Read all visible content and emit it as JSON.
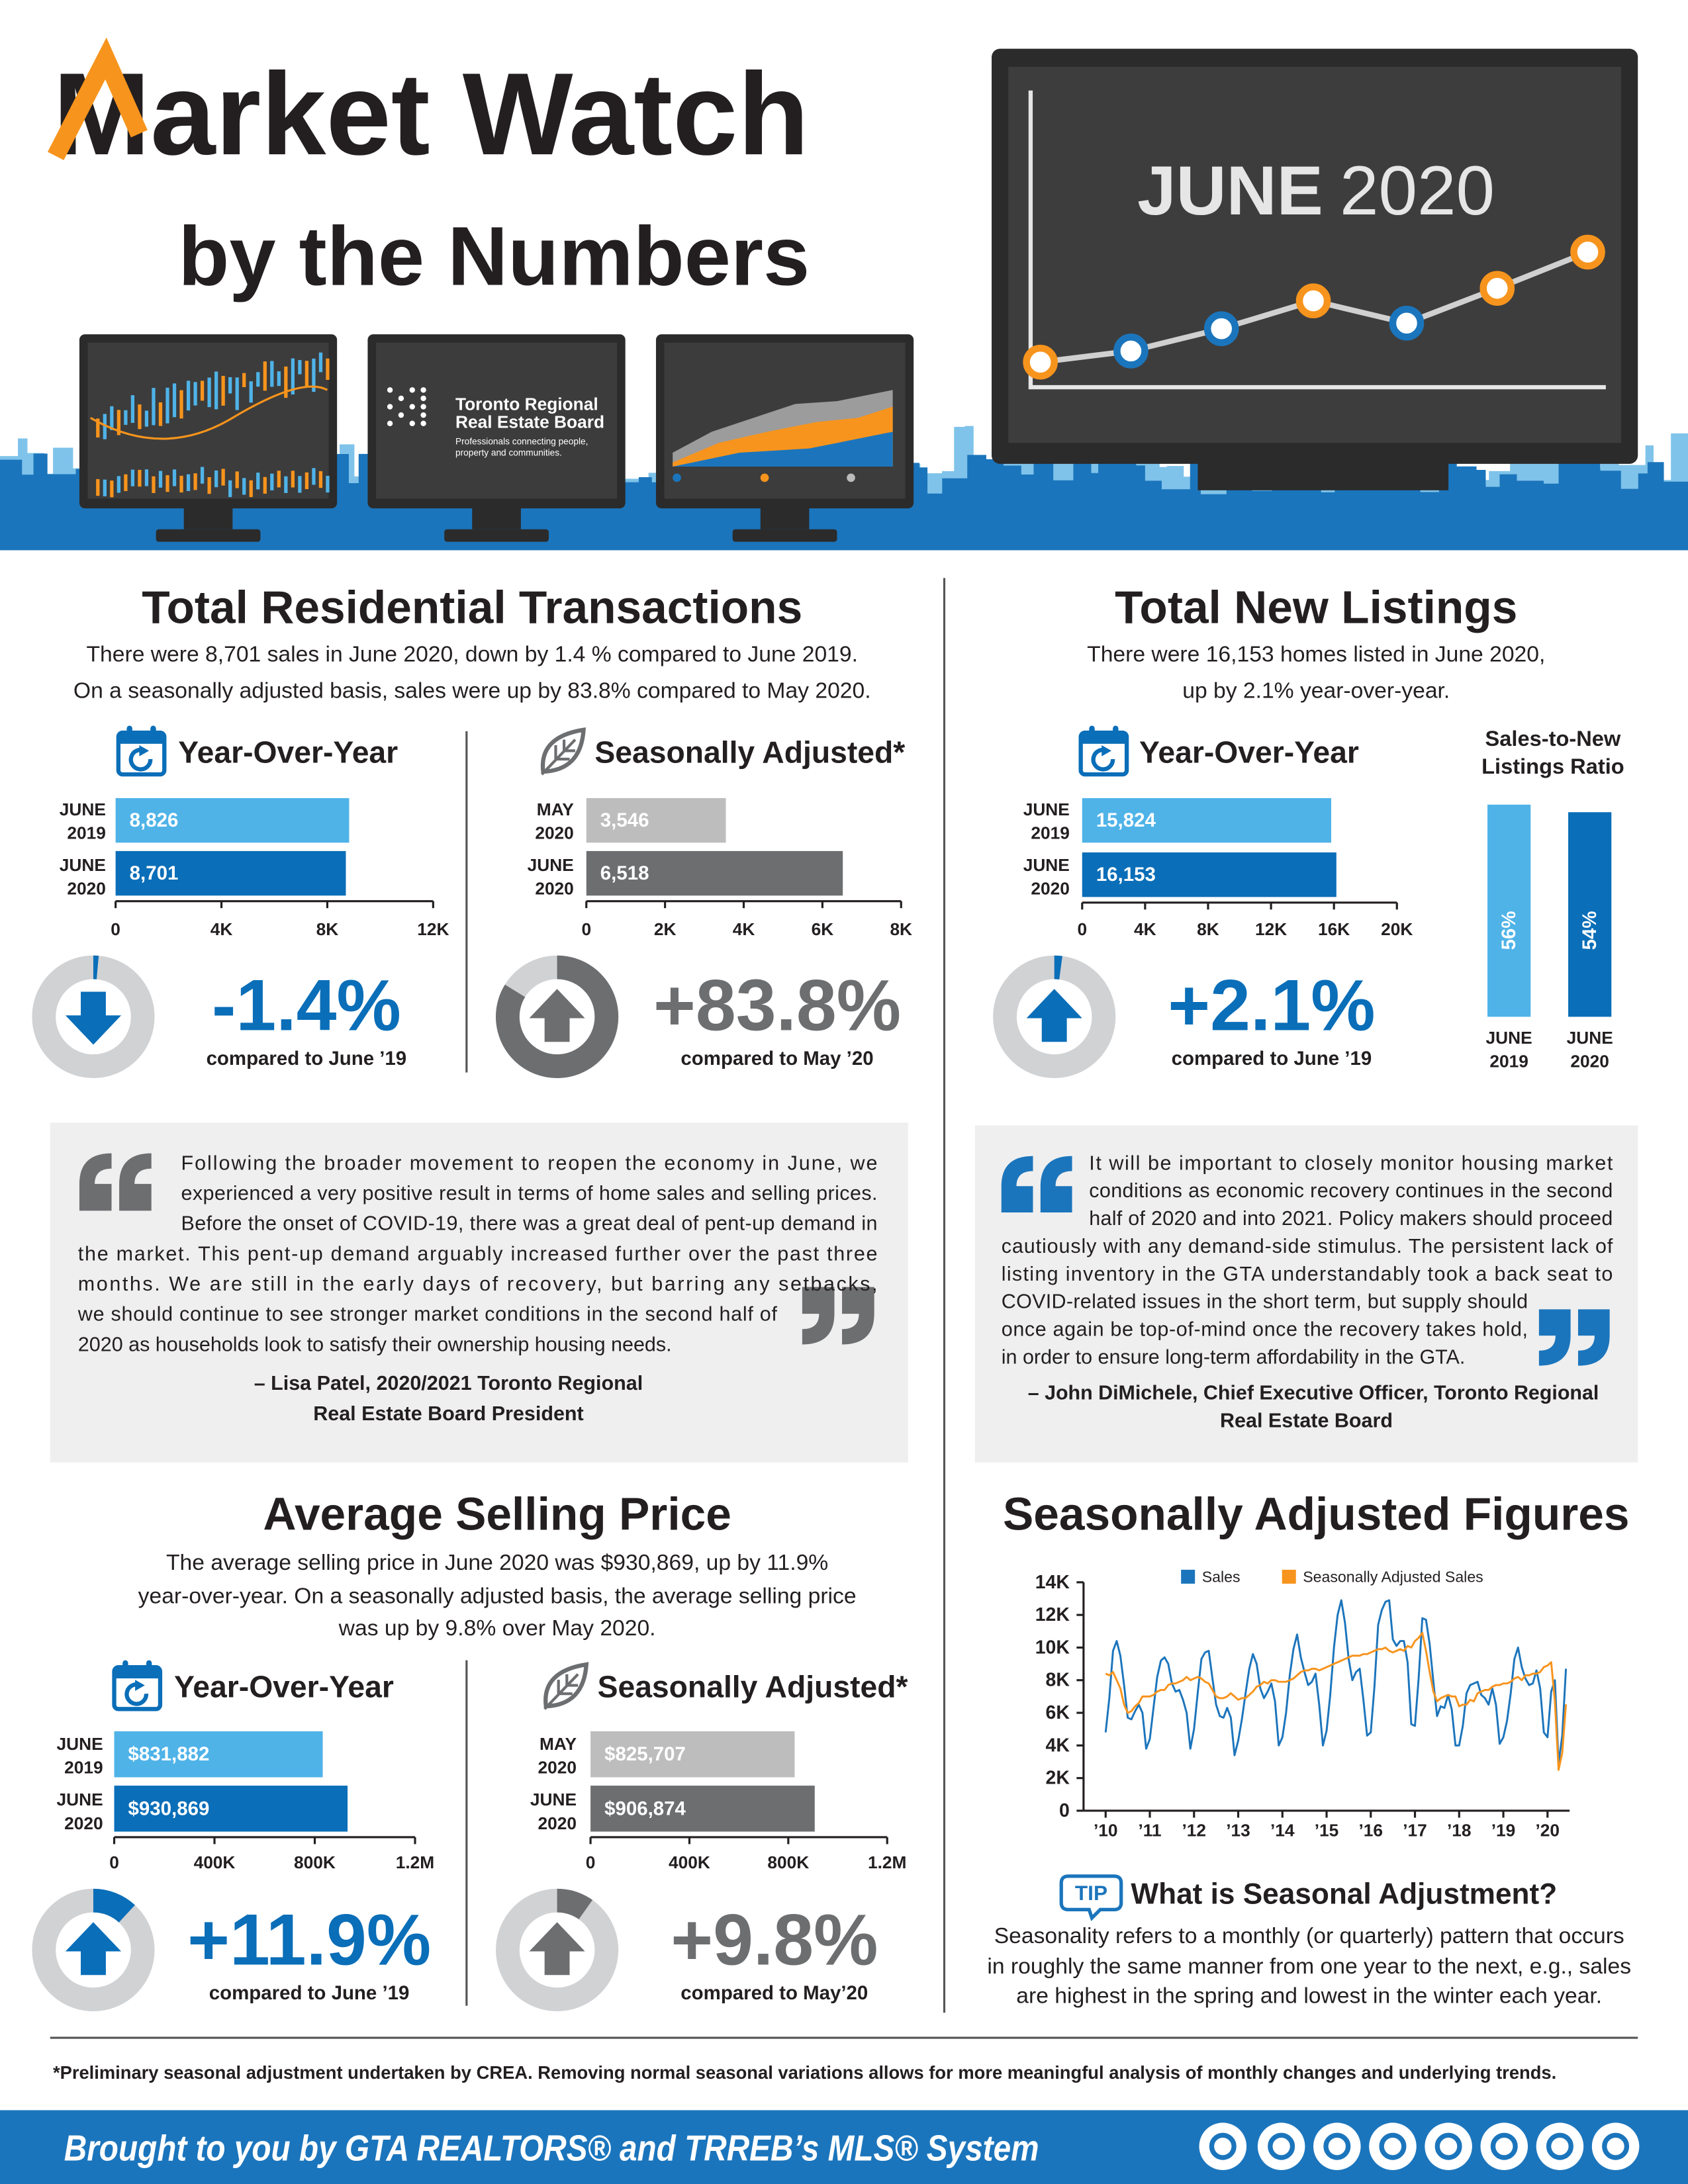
{
  "header": {
    "title": "Market Watch",
    "subtitle": "by the Numbers",
    "month": "JUNE",
    "year": "2020",
    "board": [
      "Toronto Regional",
      "Real Estate Board"
    ],
    "board_tagline": [
      "Professionals connecting people,",
      "property and communities."
    ]
  },
  "transactions": {
    "title": "Total Residential Transactions",
    "lines": [
      "There were 8,701 sales in June 2020, down by 1.4 % compared to June 2019.",
      "On a seasonally adjusted basis, sales were up by 83.8% compared to May 2020."
    ]
  },
  "listings": {
    "title": "Total New Listings",
    "lines": [
      "There were 16,153 homes listed in June 2020,",
      "up by 2.1% year-over-year."
    ]
  },
  "quotes": [
    {
      "lines": [
        "Following the broader movement to reopen the economy in June, we",
        "experienced a very positive result in terms of home sales and selling prices.",
        "Before the onset of COVID-19, there was a great deal of pent-up demand in",
        "the market. This pent-up demand arguably increased further over the past three",
        "months. We are still in the early days of recovery, but barring any setbacks,",
        "we should continue to see stronger market conditions in the second half of",
        "2020 as households look to satisfy their ownership housing needs."
      ],
      "attribution": [
        "– Lisa Patel, 2020/2021 Toronto Regional",
        "Real Estate Board President"
      ]
    },
    {
      "lines": [
        "It will be important to closely monitor housing market",
        "conditions as economic recovery continues in the second",
        "half of 2020 and into 2021. Policy makers should proceed",
        "cautiously with any demand-side stimulus. The persistent lack of",
        "listing inventory in the GTA understandably took a back seat to",
        "COVID-related issues in the short term, but supply should",
        "once again be top-of-mind once the recovery takes hold,",
        "in order to ensure long-term affordability in the GTA."
      ],
      "attribution": [
        "– John DiMichele, Chief Executive Officer, Toronto Regional",
        "Real Estate Board"
      ]
    }
  ],
  "price": {
    "title": "Average Selling Price",
    "lines": [
      "The average selling price in June 2020 was $930,869, up by 11.9%",
      "year-over-year. On a seasonally adjusted basis, the average selling price",
      "was up by 9.8% over May 2020."
    ]
  },
  "tip": {
    "badge": "TIP",
    "title": "What is Seasonal Adjustment?",
    "lines": [
      "Seasonality refers to a monthly (or quarterly) pattern that occurs",
      "in roughly the same manner from one year to the next, e.g., sales",
      "are highest in the spring and lowest in the winter each year."
    ]
  },
  "footnote": "*Preliminary seasonal adjustment undertaken by CREA. Removing normal seasonal variations allows for more meaningful analysis of monthly changes and underlying trends.",
  "footer": "Brought to you by GTA REALTORS® and TRREB’s MLS® System",
  "chart_data": [
    {
      "type": "bar",
      "orientation": "horizontal",
      "title": "Year-Over-Year",
      "categories": [
        [
          "JUNE",
          "2019"
        ],
        [
          "JUNE",
          "2020"
        ]
      ],
      "values": [
        8826,
        8701
      ],
      "value_labels": [
        "8,826",
        "8,701"
      ],
      "colors": [
        "#4fb3e8",
        "#0a6eb8"
      ],
      "xlim": [
        0,
        12000
      ],
      "xticks": [
        0,
        {
          "value": 4000,
          "label": "4K"
        },
        {
          "value": 8000,
          "label": "8K"
        },
        {
          "value": 12000,
          "label": "12K"
        }
      ],
      "change": -1.4,
      "change_label": "-1.4%",
      "change_note": "compared to June ’19"
    },
    {
      "type": "bar",
      "orientation": "horizontal",
      "title": "Seasonally Adjusted*",
      "categories": [
        [
          "MAY",
          "2020"
        ],
        [
          "JUNE",
          "2020"
        ]
      ],
      "values": [
        3546,
        6518
      ],
      "value_labels": [
        "3,546",
        "6,518"
      ],
      "colors": [
        "#bdbdbd",
        "#6d6e70"
      ],
      "xlim": [
        0,
        8000
      ],
      "xticks": [
        0,
        {
          "value": 2000,
          "label": "2K"
        },
        {
          "value": 4000,
          "label": "4K"
        },
        {
          "value": 6000,
          "label": "6K"
        },
        {
          "value": 8000,
          "label": "8K"
        }
      ],
      "change": 83.8,
      "change_label": "+83.8%",
      "change_note": "compared to May ’20"
    },
    {
      "type": "bar",
      "orientation": "horizontal",
      "title": "Year-Over-Year",
      "categories": [
        [
          "JUNE",
          "2019"
        ],
        [
          "JUNE",
          "2020"
        ]
      ],
      "values": [
        15824,
        16153
      ],
      "value_labels": [
        "15,824",
        "16,153"
      ],
      "colors": [
        "#4fb3e8",
        "#0a6eb8"
      ],
      "xlim": [
        0,
        20000
      ],
      "xticks": [
        0,
        {
          "value": 4000,
          "label": "4K"
        },
        {
          "value": 8000,
          "label": "8K"
        },
        {
          "value": 12000,
          "label": "12K"
        },
        {
          "value": 16000,
          "label": "16K"
        },
        {
          "value": 20000,
          "label": "20K"
        }
      ],
      "change": 2.1,
      "change_label": "+2.1%",
      "change_note": "compared to June ’19"
    },
    {
      "type": "bar",
      "orientation": "vertical",
      "title": [
        "Sales-to-New",
        "Listings Ratio"
      ],
      "categories": [
        [
          "JUNE",
          "2019"
        ],
        [
          "JUNE",
          "2020"
        ]
      ],
      "values": [
        56,
        54
      ],
      "value_labels": [
        "56%",
        "54%"
      ],
      "colors": [
        "#4fb3e8",
        "#0a6eb8"
      ]
    },
    {
      "type": "bar",
      "orientation": "horizontal",
      "title": "Year-Over-Year",
      "categories": [
        [
          "JUNE",
          "2019"
        ],
        [
          "JUNE",
          "2020"
        ]
      ],
      "values": [
        831882,
        930869
      ],
      "value_labels": [
        "$831,882",
        "$930,869"
      ],
      "colors": [
        "#4fb3e8",
        "#0a6eb8"
      ],
      "xlim": [
        0,
        1200000
      ],
      "xticks": [
        0,
        {
          "value": 400000,
          "label": "400K"
        },
        {
          "value": 800000,
          "label": "800K"
        },
        {
          "value": 1200000,
          "label": "1.2M"
        }
      ],
      "change": 11.9,
      "change_label": "+11.9%",
      "change_note": "compared to June ’19"
    },
    {
      "type": "bar",
      "orientation": "horizontal",
      "title": "Seasonally Adjusted*",
      "categories": [
        [
          "MAY",
          "2020"
        ],
        [
          "JUNE",
          "2020"
        ]
      ],
      "values": [
        825707,
        906874
      ],
      "value_labels": [
        "$825,707",
        "$906,874"
      ],
      "colors": [
        "#bdbdbd",
        "#6d6e70"
      ],
      "xlim": [
        0,
        1200000
      ],
      "xticks": [
        0,
        {
          "value": 400000,
          "label": "400K"
        },
        {
          "value": 800000,
          "label": "800K"
        },
        {
          "value": 1200000,
          "label": "1.2M"
        }
      ],
      "change": 9.8,
      "change_label": "+9.8%",
      "change_note": "compared to May’20"
    },
    {
      "type": "line",
      "title": "Seasonally Adjusted Figures",
      "legend": "top",
      "x": [
        2010,
        2010.083,
        2010.167,
        2010.25,
        2010.333,
        2010.417,
        2010.5,
        2010.583,
        2010.667,
        2010.75,
        2010.833,
        2010.917,
        2011,
        2011.083,
        2011.167,
        2011.25,
        2011.333,
        2011.417,
        2011.5,
        2011.583,
        2011.667,
        2011.75,
        2011.833,
        2011.917,
        2012,
        2012.083,
        2012.167,
        2012.25,
        2012.333,
        2012.417,
        2012.5,
        2012.583,
        2012.667,
        2012.75,
        2012.833,
        2012.917,
        2013,
        2013.083,
        2013.167,
        2013.25,
        2013.333,
        2013.417,
        2013.5,
        2013.583,
        2013.667,
        2013.75,
        2013.833,
        2013.917,
        2014,
        2014.083,
        2014.167,
        2014.25,
        2014.333,
        2014.417,
        2014.5,
        2014.583,
        2014.667,
        2014.75,
        2014.833,
        2014.917,
        2015,
        2015.083,
        2015.167,
        2015.25,
        2015.333,
        2015.417,
        2015.5,
        2015.583,
        2015.667,
        2015.75,
        2015.833,
        2015.917,
        2016,
        2016.083,
        2016.167,
        2016.25,
        2016.333,
        2016.417,
        2016.5,
        2016.583,
        2016.667,
        2016.75,
        2016.833,
        2016.917,
        2017,
        2017.083,
        2017.167,
        2017.25,
        2017.333,
        2017.417,
        2017.5,
        2017.583,
        2017.667,
        2017.75,
        2017.833,
        2017.917,
        2018,
        2018.083,
        2018.167,
        2018.25,
        2018.333,
        2018.417,
        2018.5,
        2018.583,
        2018.667,
        2018.75,
        2018.833,
        2018.917,
        2019,
        2019.083,
        2019.167,
        2019.25,
        2019.333,
        2019.417,
        2019.5,
        2019.583,
        2019.667,
        2019.75,
        2019.833,
        2019.917,
        2020,
        2020.083,
        2020.167,
        2020.25,
        2020.333,
        2020.417
      ],
      "series": [
        {
          "name": "Sales",
          "color": "#1c75bc",
          "values": [
            4800,
            6900,
            9800,
            10400,
            9500,
            7700,
            5700,
            5600,
            6100,
            6500,
            6000,
            3800,
            4400,
            6300,
            8200,
            9200,
            9400,
            9000,
            7800,
            7300,
            7400,
            6800,
            6000,
            3800,
            5000,
            7200,
            9300,
            9700,
            9800,
            8100,
            6500,
            5800,
            5700,
            6300,
            5700,
            3400,
            4300,
            5600,
            7200,
            8700,
            9600,
            9000,
            7500,
            6900,
            7300,
            7800,
            6700,
            4000,
            4500,
            6000,
            8300,
            9900,
            10800,
            9400,
            8500,
            7700,
            7900,
            8400,
            6500,
            4000,
            4900,
            7100,
            10000,
            12000,
            12900,
            11500,
            9300,
            8000,
            8500,
            8700,
            6800,
            4600,
            4800,
            7600,
            11400,
            12300,
            12800,
            12900,
            10500,
            10100,
            10400,
            10400,
            9100,
            5300,
            5200,
            8100,
            11800,
            11700,
            10200,
            7900,
            5800,
            6400,
            6300,
            7100,
            6200,
            4000,
            4000,
            5200,
            7200,
            7700,
            7800,
            7900,
            7100,
            6900,
            6500,
            7500,
            6500,
            4100,
            4500,
            5500,
            7200,
            9300,
            10000,
            8800,
            8100,
            7700,
            7800,
            8600,
            7500,
            4800,
            4500,
            7300,
            8000,
            2900,
            4600,
            8701
          ]
        },
        {
          "name": "Seasonally Adjusted Sales",
          "color": "#f7941d",
          "values": [
            8400,
            8300,
            8500,
            8000,
            7500,
            6500,
            6000,
            6100,
            6400,
            6600,
            7000,
            7000,
            7000,
            7100,
            7300,
            7400,
            7400,
            7700,
            7800,
            7800,
            7900,
            8000,
            8200,
            8000,
            8100,
            8200,
            8100,
            7900,
            7800,
            7400,
            7000,
            6900,
            6900,
            7000,
            7200,
            7000,
            6800,
            6900,
            6900,
            7100,
            7300,
            7600,
            7700,
            7900,
            7800,
            8000,
            8000,
            7900,
            7900,
            7900,
            8000,
            8100,
            8300,
            8500,
            8600,
            8600,
            8700,
            8700,
            8600,
            8700,
            8800,
            8900,
            9000,
            9100,
            9200,
            9300,
            9400,
            9500,
            9500,
            9500,
            9600,
            9600,
            9700,
            9800,
            9900,
            9900,
            10000,
            9800,
            9700,
            9800,
            9900,
            9800,
            10100,
            10000,
            10400,
            10600,
            10900,
            9800,
            8500,
            7300,
            6700,
            6900,
            7000,
            7100,
            7000,
            7000,
            6400,
            6500,
            6500,
            6800,
            6700,
            7200,
            7300,
            7400,
            7400,
            7600,
            7700,
            7700,
            7800,
            7800,
            7900,
            8100,
            8200,
            8000,
            8300,
            8300,
            8400,
            8400,
            8500,
            8800,
            8900,
            9100,
            6700,
            2500,
            3546,
            6518
          ]
        }
      ],
      "xlim": [
        2009.5,
        2020.5
      ],
      "xticks": [
        {
          "value": 2010,
          "label": "’10"
        },
        {
          "value": 2011,
          "label": "’11"
        },
        {
          "value": 2012,
          "label": "’12"
        },
        {
          "value": 2013,
          "label": "’13"
        },
        {
          "value": 2014,
          "label": "’14"
        },
        {
          "value": 2015,
          "label": "’15"
        },
        {
          "value": 2016,
          "label": "’16"
        },
        {
          "value": 2017,
          "label": "’17"
        },
        {
          "value": 2018,
          "label": "’18"
        },
        {
          "value": 2019,
          "label": "’19"
        },
        {
          "value": 2020,
          "label": "’20"
        }
      ],
      "ylim": [
        0,
        14000
      ],
      "yticks": [
        0,
        {
          "value": 2000,
          "label": "2K"
        },
        {
          "value": 4000,
          "label": "4K"
        },
        {
          "value": 6000,
          "label": "6K"
        },
        {
          "value": 8000,
          "label": "8K"
        },
        {
          "value": 10000,
          "label": "10K"
        },
        {
          "value": 12000,
          "label": "12K"
        },
        {
          "value": 14000,
          "label": "14K"
        }
      ]
    }
  ]
}
